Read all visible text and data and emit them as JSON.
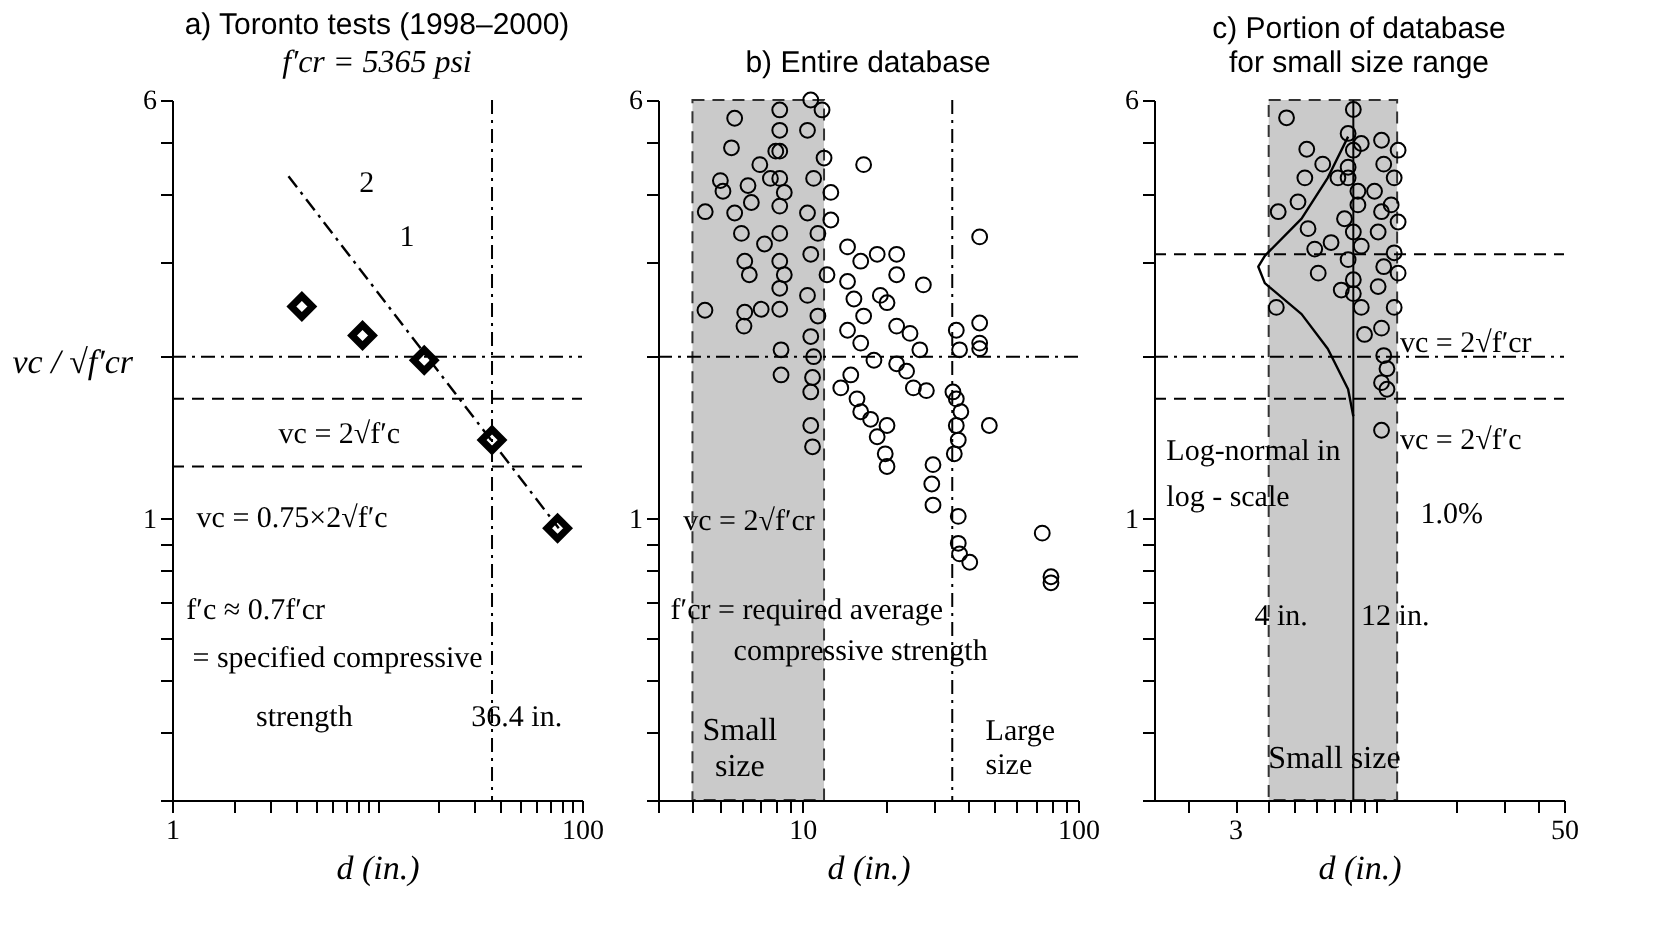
{
  "chart_data": [
    {
      "type": "scatter",
      "title": "a) Toronto tests (1998–2000)",
      "subtitle": "f′cr = 5365 psi",
      "xlabel": "d (in.)",
      "ylabel": "vc / √f′cr",
      "log": "xy",
      "grid": false,
      "xlim": [
        1,
        100
      ],
      "xticks": [
        1,
        {
          "value": 2,
          "label": null
        },
        {
          "value": 3,
          "label": null
        },
        {
          "value": 4,
          "label": null
        },
        {
          "value": 5,
          "label": null
        },
        {
          "value": 6,
          "label": null
        },
        {
          "value": 7,
          "label": null
        },
        {
          "value": 8,
          "label": null
        },
        {
          "value": 9,
          "label": null
        },
        {
          "value": 10,
          "label": null
        },
        {
          "value": 20,
          "label": null
        },
        {
          "value": 30,
          "label": null
        },
        {
          "value": 40,
          "label": null
        },
        {
          "value": 50,
          "label": null
        },
        {
          "value": 60,
          "label": null
        },
        {
          "value": 70,
          "label": null
        },
        {
          "value": 80,
          "label": null
        },
        {
          "value": 90,
          "label": null
        },
        100
      ],
      "ylim": [
        0.3,
        6
      ],
      "yticks": [
        {
          "value": 0.3,
          "label": null
        },
        {
          "value": 0.4,
          "label": null
        },
        {
          "value": 0.5,
          "label": null
        },
        {
          "value": 0.6,
          "label": null
        },
        {
          "value": 0.7,
          "label": null
        },
        {
          "value": 0.8,
          "label": null
        },
        {
          "value": 0.9,
          "label": null
        },
        1,
        {
          "value": 2,
          "label": null
        },
        {
          "value": 3,
          "label": null
        },
        {
          "value": 4,
          "label": null
        },
        {
          "value": 5,
          "label": null
        },
        6
      ],
      "series": [
        {
          "marker": "diamond",
          "color": "#000000",
          "x": [
            4.3,
            8.5,
            17,
            36.4,
            76
          ],
          "values": [
            2.48,
            2.19,
            1.97,
            1.4,
            0.96
          ]
        },
        {
          "type": "line",
          "line_style": "dotted",
          "color": "#000000",
          "x": [
            3.7,
            77
          ],
          "values": [
            4.33,
            0.96
          ]
        }
      ],
      "ref_lines": [
        {
          "axis": "y",
          "value": 2,
          "line_style": "dotted",
          "color": "#000000"
        },
        {
          "axis": "y",
          "value": 1.67,
          "line_style": "dashed",
          "color": "#000000",
          "label": "vc = 2√f′c"
        },
        {
          "axis": "y",
          "value": 1.25,
          "line_style": "dashed",
          "color": "#000000"
        },
        {
          "axis": "x",
          "value": 36.4,
          "line_style": "dotted",
          "color": "#000000",
          "label": "36.4 in."
        }
      ],
      "annotations": [
        "2",
        "1",
        "vc = 0.75×2√f′c",
        "f′c ≈ 0.7f′cr",
        "= specified compressive",
        "strength"
      ]
    },
    {
      "type": "scatter",
      "title": "b) Entire database",
      "xlabel": "d (in.)",
      "log": "xy",
      "grid": false,
      "xlim": [
        3,
        100
      ],
      "xticks": [
        {
          "value": 3,
          "label": null
        },
        {
          "value": 4,
          "label": null
        },
        {
          "value": 5,
          "label": null
        },
        {
          "value": 6,
          "label": null
        },
        {
          "value": 7,
          "label": null
        },
        {
          "value": 8,
          "label": null
        },
        {
          "value": 9,
          "label": null
        },
        10,
        {
          "value": 20,
          "label": null
        },
        {
          "value": 30,
          "label": null
        },
        {
          "value": 40,
          "label": null
        },
        {
          "value": 50,
          "label": null
        },
        {
          "value": 60,
          "label": null
        },
        {
          "value": 70,
          "label": null
        },
        {
          "value": 80,
          "label": null
        },
        {
          "value": 90,
          "label": null
        },
        100
      ],
      "ylim": [
        0.3,
        6
      ],
      "yticks": [
        {
          "value": 0.3,
          "label": null
        },
        {
          "value": 0.4,
          "label": null
        },
        {
          "value": 0.5,
          "label": null
        },
        {
          "value": 0.6,
          "label": null
        },
        {
          "value": 0.7,
          "label": null
        },
        {
          "value": 0.8,
          "label": null
        },
        {
          "value": 0.9,
          "label": null
        },
        1,
        {
          "value": 2,
          "label": null
        },
        {
          "value": 3,
          "label": null
        },
        {
          "value": 4,
          "label": null
        },
        {
          "value": 5,
          "label": null
        },
        6
      ],
      "series": [
        {
          "marker": "circle",
          "color": "#000000",
          "x": [
            4.45,
            4.44,
            5.05,
            5.69,
            5.54,
            5.16,
            5.69,
            6.36,
            6.02,
            6.54,
            6.19,
            6.43,
            6.19,
            6.15,
            7.3,
            7.1,
            7.02,
            7.67,
            8.29,
            8.29,
            8.29,
            8.29,
            8.29,
            8.29,
            8.29,
            8.29,
            8.29,
            8.02,
            8.61,
            8.61,
            8.38,
            8.38,
            10.74,
            11.8,
            10.45,
            12.0,
            11.0,
            12.7,
            10.45,
            11.4,
            10.74,
            12.3,
            10.45,
            11.4,
            10.74,
            11.0,
            10.9,
            10.74,
            10.74,
            10.9,
            12.7,
            16.7,
            14.6,
            16.3,
            18.7,
            14.6,
            15.4,
            16.7,
            14.6,
            16.3,
            13.8,
            15.0,
            15.8,
            16.3,
            18.2,
            19.2,
            22.0,
            22.0,
            20.3,
            22.0,
            24.6,
            23.9,
            26.7,
            28.2,
            25.3,
            22.0,
            20.3,
            18.7,
            20.0,
            20.3,
            17.7,
            27.5,
            29.8,
            29.5,
            29.8,
            36.2,
            37.2,
            35.2,
            36.2,
            37.6,
            36.2,
            36.8,
            35.6,
            36.8,
            36.8,
            37.2,
            40.5,
            44.0,
            44.0,
            44.0,
            44.0,
            47.7,
            74.2,
            79.8,
            79.8
          ],
          "values": [
            3.72,
            2.44,
            4.25,
            5.55,
            4.89,
            4.06,
            3.7,
            4.16,
            3.39,
            3.87,
            3.01,
            2.84,
            2.42,
            2.28,
            3.24,
            2.45,
            4.55,
            4.29,
            5.75,
            5.27,
            4.82,
            4.29,
            3.81,
            3.39,
            3.01,
            2.68,
            2.45,
            4.82,
            4.04,
            2.84,
            2.06,
            1.85,
            6.0,
            5.75,
            5.27,
            4.68,
            4.29,
            4.04,
            3.7,
            3.39,
            3.1,
            2.84,
            2.6,
            2.38,
            2.18,
            2.0,
            1.83,
            1.72,
            1.49,
            1.36,
            3.59,
            4.55,
            3.2,
            3.01,
            3.1,
            2.76,
            2.56,
            2.38,
            2.24,
            2.12,
            1.75,
            1.85,
            1.67,
            1.58,
            1.97,
            2.6,
            3.1,
            2.84,
            2.52,
            2.28,
            2.21,
            1.88,
            2.06,
            1.73,
            1.75,
            1.94,
            1.49,
            1.42,
            1.32,
            1.25,
            1.53,
            2.72,
            1.26,
            1.16,
            1.06,
            2.24,
            2.06,
            1.72,
            1.67,
            1.58,
            1.49,
            1.4,
            1.32,
            1.01,
            0.9,
            0.86,
            0.83,
            3.34,
            2.31,
            2.12,
            2.07,
            1.49,
            0.94,
            0.78,
            0.76
          ]
        }
      ],
      "ref_lines": [
        {
          "axis": "y",
          "value": 2,
          "line_style": "dotted",
          "color": "#000000"
        },
        {
          "axis": "x",
          "value": 35,
          "line_style": "dotted",
          "color": "#000000",
          "label": "Large size"
        }
      ],
      "bands": [
        {
          "axis": "x",
          "from": 4,
          "to": 12,
          "label": "Small size",
          "color": "#bdbdbd"
        }
      ],
      "annotations": [
        "vc = 2√f′cr",
        "f′cr = required average",
        "compressive strength"
      ]
    },
    {
      "type": "scatter",
      "title": [
        "c) Portion of database",
        "for small size range"
      ],
      "xlabel": "d (in.)",
      "log": "xy",
      "grid": false,
      "xlim": [
        1.5,
        50
      ],
      "xticks": [
        {
          "value": 2,
          "label": null
        },
        3,
        {
          "value": 4,
          "label": null
        },
        {
          "value": 5,
          "label": null
        },
        {
          "value": 6,
          "label": null
        },
        {
          "value": 7,
          "label": null
        },
        {
          "value": 8,
          "label": null
        },
        {
          "value": 9,
          "label": null
        },
        {
          "value": 10,
          "label": null
        },
        {
          "value": 20,
          "label": null
        },
        {
          "value": 30,
          "label": null
        },
        {
          "value": 40,
          "label": null
        },
        50
      ],
      "ylim": [
        0.3,
        6
      ],
      "yticks": [
        {
          "value": 0.3,
          "label": null
        },
        {
          "value": 0.4,
          "label": null
        },
        {
          "value": 0.5,
          "label": null
        },
        {
          "value": 0.6,
          "label": null
        },
        {
          "value": 0.7,
          "label": null
        },
        {
          "value": 0.8,
          "label": null
        },
        {
          "value": 0.9,
          "label": null
        },
        1,
        {
          "value": 2,
          "label": null
        },
        {
          "value": 3,
          "label": null
        },
        {
          "value": 4,
          "label": null
        },
        {
          "value": 5,
          "label": null
        },
        6
      ],
      "series": [
        {
          "marker": "circle",
          "color": "#000000",
          "x": [
            4.66,
            4.34,
            4.27,
            5.54,
            5.45,
            5.14,
            5.6,
            5.93,
            6.11,
            6.82,
            7.44,
            7.23,
            6.35,
            7.89,
            8.25,
            8.25,
            7.89,
            8.58,
            7.65,
            8.25,
            8.83,
            7.89,
            8.25,
            8.25,
            8.83,
            7.89,
            8.83,
            8.58,
            10.5,
            10.7,
            9.89,
            11.7,
            10.5,
            12.1,
            10.2,
            11.7,
            10.7,
            12.1,
            10.2,
            11.7,
            9.08,
            10.5,
            10.7,
            11.0,
            10.5,
            11.0,
            10.5,
            12.1,
            11.4
          ],
          "values": [
            5.56,
            3.72,
            2.47,
            4.86,
            4.3,
            3.88,
            3.46,
            3.17,
            2.86,
            3.26,
            2.66,
            4.3,
            4.56,
            5.2,
            5.76,
            4.84,
            4.3,
            4.06,
            3.61,
            3.41,
            3.21,
            3.03,
            2.78,
            2.62,
            2.47,
            4.5,
            4.98,
            3.83,
            5.05,
            4.56,
            4.06,
            4.3,
            3.72,
            3.56,
            3.41,
            3.12,
            2.94,
            2.86,
            2.7,
            2.47,
            2.2,
            2.26,
            2.01,
            1.9,
            1.79,
            1.74,
            1.46,
            4.84,
            3.83
          ]
        },
        {
          "type": "line",
          "line_style": "solid",
          "color": "#000000",
          "x": [
            7.89,
            6.63,
            5.3,
            3.87,
            3.66,
            3.87,
            5.3,
            6.63,
            7.89,
            8.25
          ],
          "values": [
            5.13,
            4.3,
            3.61,
            3.08,
            2.94,
            2.74,
            2.4,
            2.07,
            1.74,
            1.55
          ]
        }
      ],
      "ref_lines": [
        {
          "axis": "y",
          "value": 2,
          "line_style": "dotted",
          "color": "#000000",
          "label": "vc = 2√f′cr"
        },
        {
          "axis": "y",
          "value": 1.67,
          "line_style": "dashed",
          "color": "#000000",
          "label": "vc = 2√f′c"
        },
        {
          "axis": "x",
          "value": 8.25,
          "line_style": "solid",
          "color": "#000000"
        },
        {
          "axis": "y",
          "value": 3.1,
          "line_style": "dashed",
          "color": "#000000"
        }
      ],
      "bands": [
        {
          "axis": "x",
          "from": 4,
          "to": 12,
          "label": "Small size",
          "color": "#bdbdbd"
        }
      ],
      "annotations": [
        "Log-normal in",
        "log - scale",
        "1.0%",
        "4 in.",
        "12 in."
      ]
    }
  ]
}
